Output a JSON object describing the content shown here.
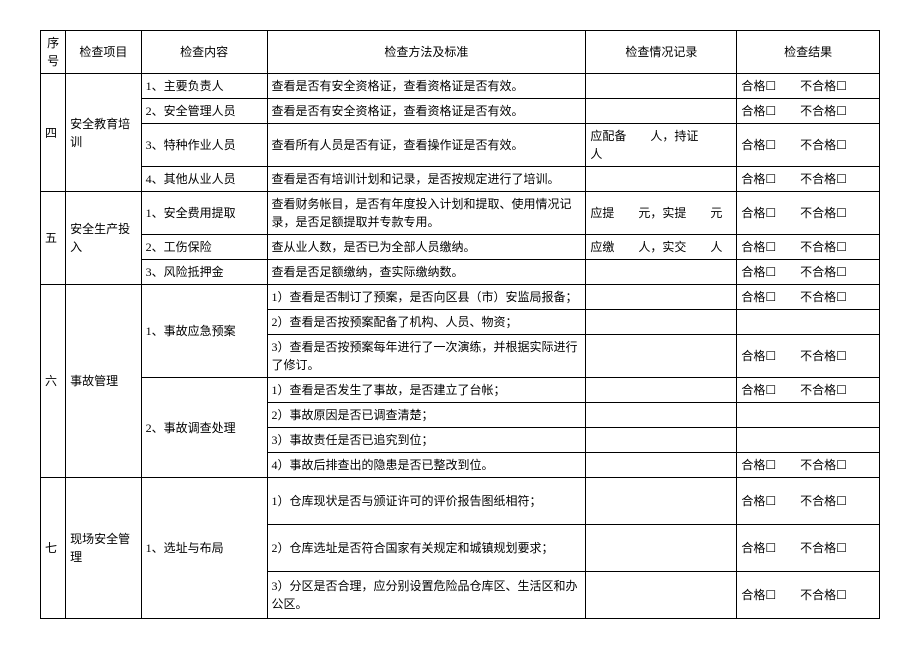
{
  "headers": {
    "seq": "序号",
    "item": "检查项目",
    "content": "检查内容",
    "method": "检查方法及标准",
    "record": "检查情况记录",
    "result": "检查结果"
  },
  "result_text": {
    "pass": "合格☐",
    "fail": "不合格☐",
    "gap": "　　"
  },
  "sections": {
    "s4": {
      "seq": "四",
      "item": "安全教育培训",
      "rows": [
        {
          "content": "1、主要负责人",
          "method": "查看是否有安全资格证，查看资格证是否有效。",
          "record": ""
        },
        {
          "content": "2、安全管理人员",
          "method": "查看是否有安全资格证，查看资格证是否有效。",
          "record": ""
        },
        {
          "content": "3、特种作业人员",
          "method": "查看所有人员是否有证，查看操作证是否有效。",
          "record": "应配备　　人，持证　　人"
        },
        {
          "content": "4、其他从业人员",
          "method": "查看是否有培训计划和记录，是否按规定进行了培训。",
          "record": ""
        }
      ]
    },
    "s5": {
      "seq": "五",
      "item": "安全生产投入",
      "rows": [
        {
          "content": "1、安全费用提取",
          "method": "查看财务帐目，是否有年度投入计划和提取、使用情况记录，是否足额提取并专款专用。",
          "record": "应提　　元，实提　　元"
        },
        {
          "content": "2、工伤保险",
          "method": "查从业人数，是否已为全部人员缴纳。",
          "record": "应缴　　人，实交　　人"
        },
        {
          "content": "3、风险抵押金",
          "method": "查看是否足额缴纳，查实际缴纳数。",
          "record": ""
        }
      ]
    },
    "s6": {
      "seq": "六",
      "item": "事故管理",
      "rows_a": [
        {
          "content": "1、事故应急预案",
          "method": "1）查看是否制订了预案，是否向区县（市）安监局报备；",
          "record": ""
        },
        {
          "method": "2）查看是否按预案配备了机构、人员、物资；",
          "record": ""
        },
        {
          "method": "3）查看是否按预案每年进行了一次演练，并根据实际进行了修订。",
          "record": ""
        }
      ],
      "rows_b": [
        {
          "content": "2、事故调查处理",
          "method": "1）查看是否发生了事故，是否建立了台帐；",
          "record": ""
        },
        {
          "method": "2）事故原因是否已调查清楚；",
          "record": ""
        },
        {
          "method": "3）事故责任是否已追究到位；",
          "record": ""
        },
        {
          "method": "4）事故后排查出的隐患是否已整改到位。",
          "record": ""
        }
      ]
    },
    "s7": {
      "seq": "七",
      "item": "现场安全管理",
      "content": "1、选址与布局",
      "rows": [
        {
          "method": "1）仓库现状是否与颁证许可的评价报告图纸相符；",
          "record": ""
        },
        {
          "method": "2）仓库选址是否符合国家有关规定和城镇规划要求；",
          "record": ""
        },
        {
          "method": "3）分区是否合理，应分别设置危险品仓库区、生活区和办公区。",
          "record": ""
        }
      ]
    }
  }
}
